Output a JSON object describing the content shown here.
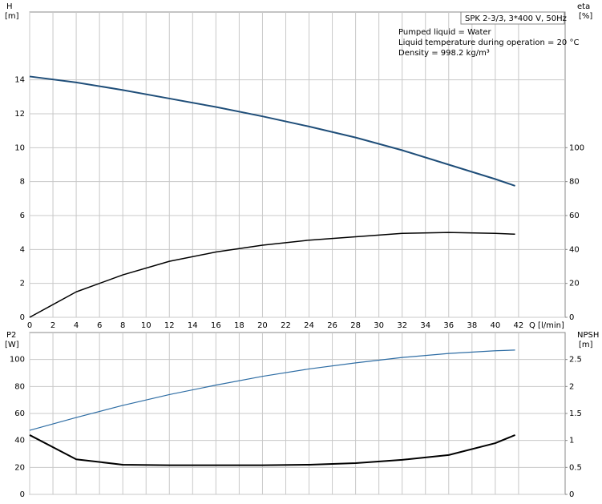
{
  "chart_data": [
    {
      "type": "line",
      "y_label": "H",
      "y_unit": "[m]",
      "y2_label": "eta",
      "y2_unit": "[%]",
      "x_label": "Q [l/min]",
      "box_title": "SPK 2-3/3, 3*400 V, 50Hz",
      "annotations": [
        "Pumped liquid = Water",
        "Liquid temperature during operation = 20 °C",
        "Density = 998.2 kg/m³"
      ],
      "x": [
        0,
        4,
        8,
        12,
        16,
        20,
        24,
        28,
        32,
        36,
        40,
        41.7
      ],
      "series": [
        {
          "name": "H",
          "color": "#1f4e79",
          "width": 2,
          "values": [
            14.2,
            13.85,
            13.4,
            12.9,
            12.4,
            11.85,
            11.25,
            10.6,
            9.85,
            9.0,
            8.15,
            7.75
          ]
        },
        {
          "name": "eta",
          "color": "#000000",
          "width": 1.5,
          "axis": "y2",
          "values": [
            0,
            15,
            25,
            33,
            38.5,
            42.5,
            45.5,
            47.5,
            49.5,
            50,
            49.5,
            49
          ]
        }
      ],
      "xlim": [
        0,
        46
      ],
      "xticks": [
        0,
        2,
        4,
        6,
        8,
        10,
        12,
        14,
        16,
        18,
        20,
        22,
        24,
        26,
        28,
        30,
        32,
        34,
        36,
        38,
        40,
        42
      ],
      "ylim": [
        0,
        18
      ],
      "yticks": [
        0,
        2,
        4,
        6,
        8,
        10,
        12,
        14
      ],
      "y2lim": [
        0,
        180
      ],
      "y2ticks": [
        0,
        20,
        40,
        60,
        80,
        100
      ],
      "grid": true
    },
    {
      "type": "line",
      "y_label": "P2",
      "y_unit": "[W]",
      "y2_label": "NPSH",
      "y2_unit": "[m]",
      "x": [
        0,
        4,
        8,
        12,
        16,
        20,
        24,
        28,
        32,
        36,
        40,
        41.7
      ],
      "series": [
        {
          "name": "P2",
          "color": "#2e6da4",
          "width": 1.2,
          "values": [
            47.5,
            57,
            66,
            74,
            81,
            87.5,
            93,
            97.5,
            101.5,
            104.5,
            106.5,
            107
          ]
        },
        {
          "name": "NPSH",
          "color": "#000000",
          "width": 2,
          "axis": "y2",
          "values": [
            1.1,
            0.65,
            0.55,
            0.54,
            0.54,
            0.54,
            0.55,
            0.58,
            0.64,
            0.73,
            0.95,
            1.1
          ]
        }
      ],
      "xlim": [
        0,
        46
      ],
      "ylim": [
        0,
        120
      ],
      "yticks": [
        0,
        20,
        40,
        60,
        80,
        100
      ],
      "y2lim": [
        0,
        3
      ],
      "y2ticks": [
        0,
        0.5,
        1,
        1.5,
        2,
        2.5
      ],
      "grid": true
    }
  ]
}
